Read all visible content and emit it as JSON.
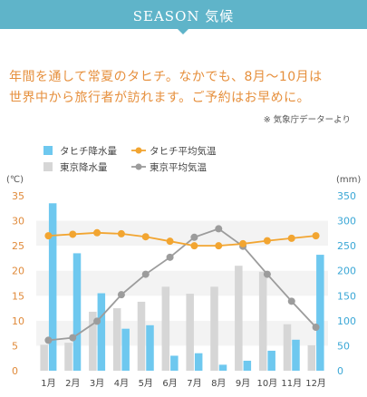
{
  "header": {
    "title": "SEASON 気候"
  },
  "intro": {
    "line1": "年間を通して常夏のタヒチ。なかでも、8月〜10月は",
    "line2": "世界中から旅行者が訪れます。ご予約はお早めに。"
  },
  "source_note": "※ 気象庁データーより",
  "colors": {
    "header_bg": "#5fb4c9",
    "tahiti_rain": "#6ec8ef",
    "tokyo_rain": "#d6d6d6",
    "tahiti_temp": "#f2a531",
    "tokyo_temp": "#9c9c9c",
    "band": "#f3f3f3",
    "intro_text": "#e68f3c"
  },
  "chart_data": {
    "type": "bar",
    "categories": [
      "1月",
      "2月",
      "3月",
      "4月",
      "5月",
      "6月",
      "7月",
      "8月",
      "9月",
      "10月",
      "11月",
      "12月"
    ],
    "left_axis": {
      "unit": "(℃)",
      "ylim": [
        0,
        35
      ],
      "ticks": [
        0,
        5,
        10,
        15,
        20,
        25,
        30,
        35
      ]
    },
    "right_axis": {
      "unit": "(mm)",
      "ylim": [
        0,
        350
      ],
      "ticks": [
        0,
        50,
        100,
        150,
        200,
        250,
        300,
        350
      ]
    },
    "legend": [
      {
        "label": "タヒチ降水量",
        "kind": "bar",
        "series": "tahiti_rain"
      },
      {
        "label": "タヒチ平均気温",
        "kind": "line",
        "series": "tahiti_temp"
      },
      {
        "label": "東京降水量",
        "kind": "bar",
        "series": "tokyo_rain"
      },
      {
        "label": "東京平均気温",
        "kind": "line",
        "series": "tokyo_temp"
      }
    ],
    "series": {
      "tokyo_rain": {
        "name": "東京降水量",
        "axis": "right",
        "values": [
          52,
          56,
          118,
          125,
          138,
          168,
          154,
          168,
          210,
          198,
          93,
          51
        ]
      },
      "tahiti_rain": {
        "name": "タヒチ降水量",
        "axis": "right",
        "values": [
          335,
          235,
          155,
          84,
          91,
          30,
          35,
          12,
          20,
          40,
          62,
          232
        ]
      },
      "tahiti_temp": {
        "name": "タヒチ平均気温",
        "axis": "left",
        "values": [
          27.0,
          27.3,
          27.6,
          27.4,
          26.8,
          25.9,
          25.0,
          25.0,
          25.4,
          26.0,
          26.5,
          27.0
        ]
      },
      "tokyo_temp": {
        "name": "東京平均気温",
        "axis": "left",
        "values": [
          6.1,
          6.6,
          9.9,
          15.2,
          19.3,
          22.7,
          26.7,
          28.4,
          24.9,
          19.3,
          13.9,
          8.7
        ]
      }
    }
  }
}
